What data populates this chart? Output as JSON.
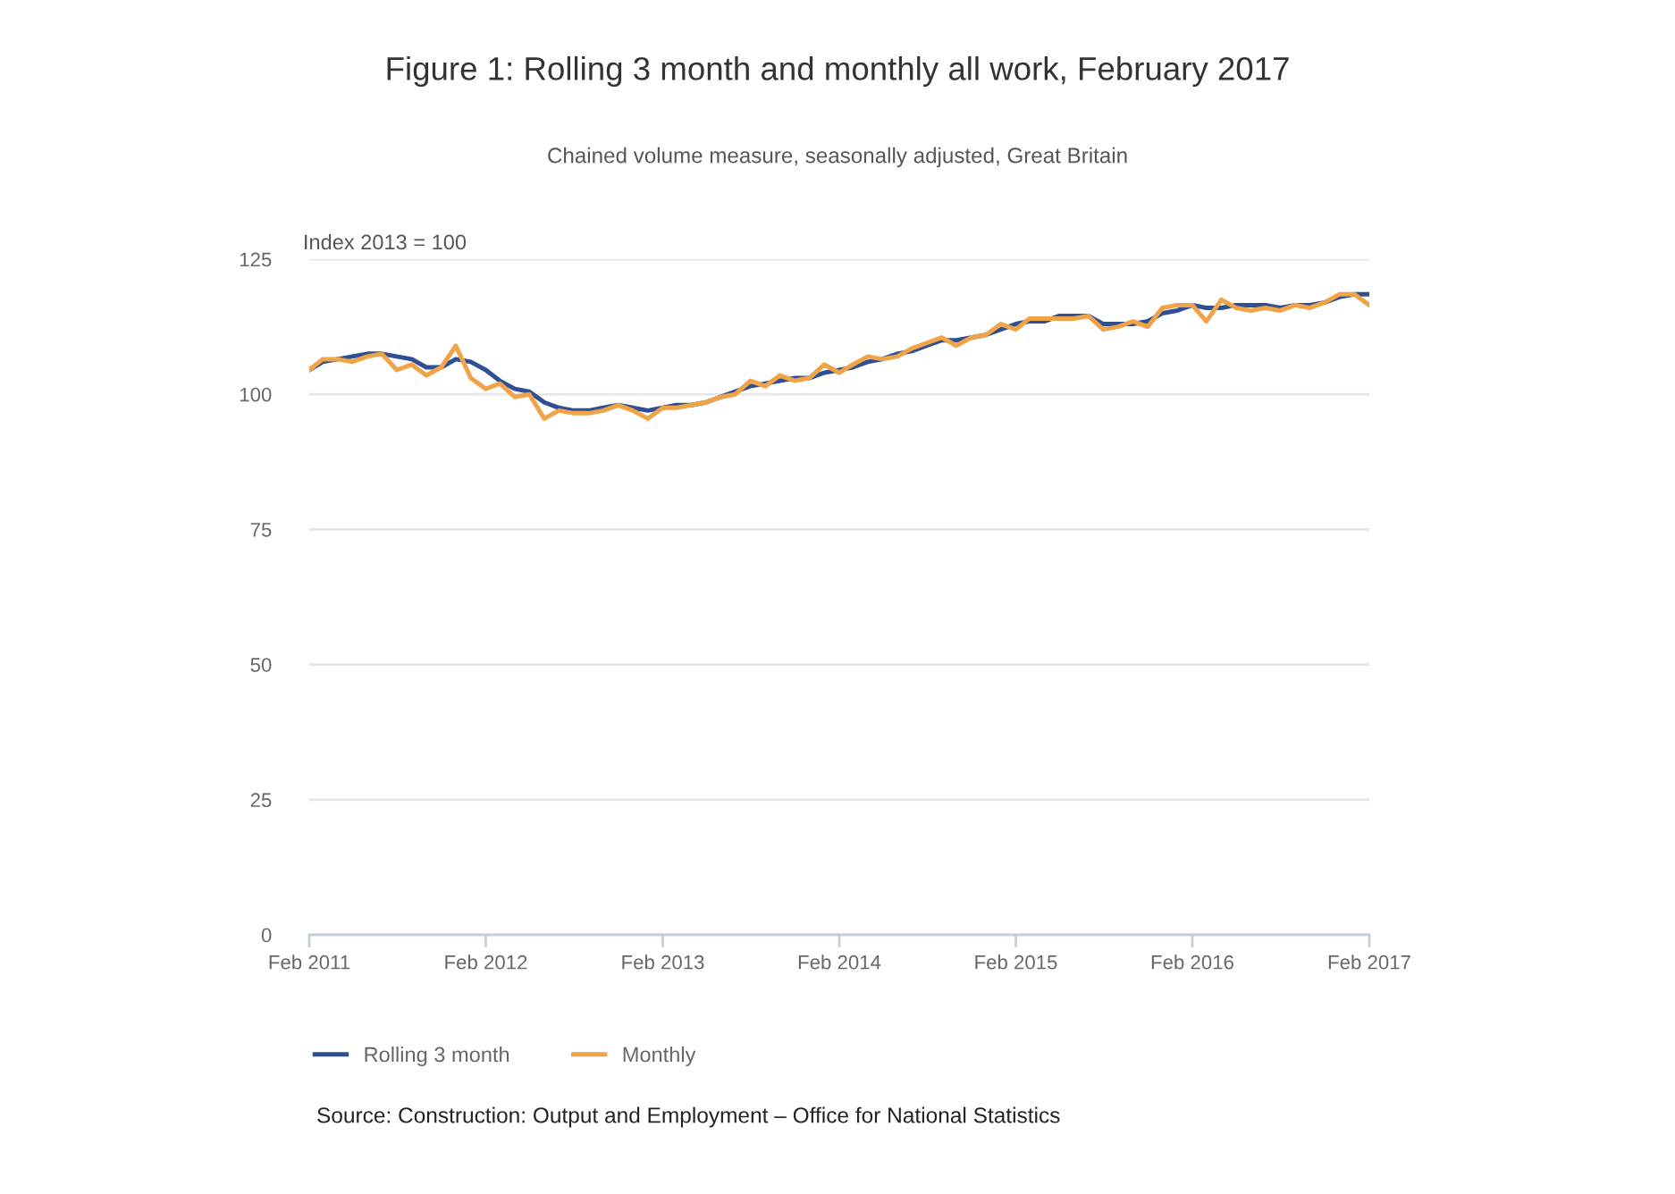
{
  "chart_data": {
    "type": "line",
    "title": "Figure 1: Rolling 3 month and monthly all work, February 2017",
    "subtitle": "Chained volume measure, seasonally adjusted, Great Britain",
    "ylabel": "Index 2013 = 100",
    "x": [
      "2011-02",
      "2011-03",
      "2011-04",
      "2011-05",
      "2011-06",
      "2011-07",
      "2011-08",
      "2011-09",
      "2011-10",
      "2011-11",
      "2011-12",
      "2012-01",
      "2012-02",
      "2012-03",
      "2012-04",
      "2012-05",
      "2012-06",
      "2012-07",
      "2012-08",
      "2012-09",
      "2012-10",
      "2012-11",
      "2012-12",
      "2013-01",
      "2013-02",
      "2013-03",
      "2013-04",
      "2013-05",
      "2013-06",
      "2013-07",
      "2013-08",
      "2013-09",
      "2013-10",
      "2013-11",
      "2013-12",
      "2014-01",
      "2014-02",
      "2014-03",
      "2014-04",
      "2014-05",
      "2014-06",
      "2014-07",
      "2014-08",
      "2014-09",
      "2014-10",
      "2014-11",
      "2014-12",
      "2015-01",
      "2015-02",
      "2015-03",
      "2015-04",
      "2015-05",
      "2015-06",
      "2015-07",
      "2015-08",
      "2015-09",
      "2015-10",
      "2015-11",
      "2015-12",
      "2016-01",
      "2016-02",
      "2016-03",
      "2016-04",
      "2016-05",
      "2016-06",
      "2016-07",
      "2016-08",
      "2016-09",
      "2016-10",
      "2016-11",
      "2016-12",
      "2017-01",
      "2017-02"
    ],
    "series": [
      {
        "name": "Rolling 3 month",
        "color": "#2f4f94",
        "values": [
          104.5,
          106,
          106.5,
          107,
          107.5,
          107.5,
          107,
          106.5,
          105,
          105,
          106.5,
          106,
          104.5,
          102.5,
          101,
          100.5,
          98.5,
          97.5,
          97,
          97,
          97.5,
          98,
          97.5,
          97,
          97.5,
          98,
          98,
          98.5,
          99.5,
          100.5,
          101.5,
          102,
          102.5,
          103,
          103,
          104,
          104.5,
          105,
          106,
          106.5,
          107.5,
          108,
          109,
          110,
          110,
          110.5,
          111,
          112,
          113,
          113.5,
          113.5,
          114.5,
          114.5,
          114.5,
          113,
          113,
          113,
          113.5,
          115,
          115.5,
          116.5,
          116,
          116,
          116.5,
          116.5,
          116.5,
          116,
          116.5,
          116.5,
          117,
          118,
          118.5,
          118.5
        ]
      },
      {
        "name": "Monthly",
        "color": "#f0a447",
        "values": [
          104.5,
          106.5,
          106.5,
          106,
          107,
          107.5,
          104.5,
          105.5,
          103.5,
          105,
          109,
          103,
          101,
          102,
          99.5,
          100,
          95.5,
          97,
          96.5,
          96.5,
          97,
          98,
          97,
          95.5,
          97.5,
          97.5,
          98,
          98.5,
          99.5,
          100,
          102.5,
          101.5,
          103.5,
          102.5,
          103,
          105.5,
          104,
          105.5,
          107,
          106.5,
          107,
          108.5,
          109.5,
          110.5,
          109,
          110.5,
          111,
          113,
          112,
          114,
          114,
          114,
          114,
          114.5,
          112,
          112.5,
          113.5,
          112.5,
          116,
          116.5,
          116.5,
          113.5,
          117.5,
          116,
          115.5,
          116,
          115.5,
          116.5,
          116,
          117,
          118.5,
          118.5,
          116.5
        ]
      }
    ],
    "xlim": [
      "2011-02",
      "2017-02"
    ],
    "xticks": [
      {
        "value": "2011-02",
        "label": "Feb 2011"
      },
      {
        "value": "2012-02",
        "label": "Feb 2012"
      },
      {
        "value": "2013-02",
        "label": "Feb 2013"
      },
      {
        "value": "2014-02",
        "label": "Feb 2014"
      },
      {
        "value": "2015-02",
        "label": "Feb 2015"
      },
      {
        "value": "2016-02",
        "label": "Feb 2016"
      },
      {
        "value": "2017-02",
        "label": "Feb 2017"
      }
    ],
    "ylim": [
      0,
      125
    ],
    "yticks": [
      0,
      25,
      50,
      75,
      100,
      125
    ],
    "grid": "y",
    "legend": "bottom left",
    "marker": "none",
    "line_style": "solid",
    "annotations": [
      "Source: Construction: Output and Employment – Office for National Statistics"
    ]
  }
}
